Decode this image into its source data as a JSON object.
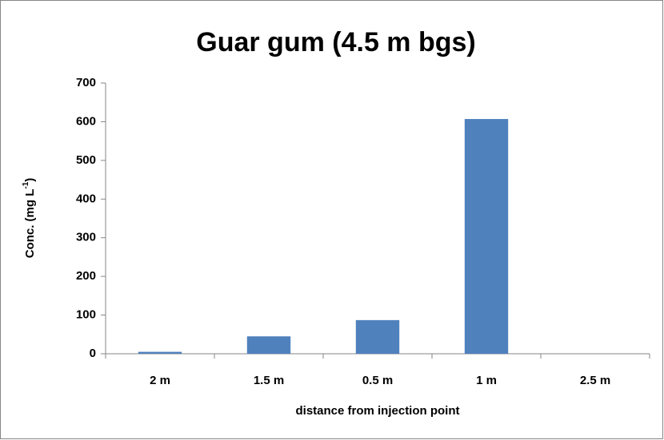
{
  "chart_data": {
    "type": "bar",
    "title": "Guar gum (4.5 m bgs)",
    "x_label": "distance from injection point",
    "y_label_parts": [
      "Conc. (mg L",
      "-1",
      ")"
    ],
    "categories": [
      "2 m",
      "1.5 m",
      "0.5 m",
      "1 m",
      "2.5 m"
    ],
    "values": [
      5,
      45,
      87,
      607,
      0
    ],
    "color": "#4f81bd",
    "ylim": [
      0,
      700
    ],
    "yticks": [
      0,
      100,
      200,
      300,
      400,
      500,
      600,
      700
    ],
    "grid": false
  }
}
